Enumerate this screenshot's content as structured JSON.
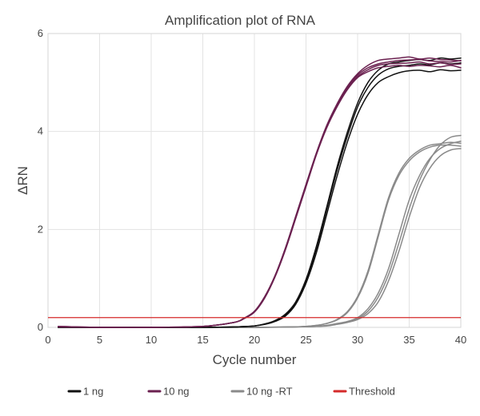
{
  "chart_data": {
    "type": "line",
    "title": "Amplification plot of RNA",
    "xlabel": "Cycle number",
    "ylabel": "ΔRN",
    "xlim": [
      0,
      40
    ],
    "ylim": [
      0,
      6
    ],
    "xticks": [
      0,
      5,
      10,
      15,
      20,
      25,
      30,
      35,
      40
    ],
    "yticks": [
      0,
      2,
      4,
      6
    ],
    "grid": true,
    "legend_position": "bottom",
    "threshold": 0.2,
    "colors": {
      "1 ng": "#111111",
      "10 ng": "#6b2150",
      "10 ng -RT": "#8a8a8a",
      "Threshold": "#d42a2a"
    },
    "series": [
      {
        "name": "10 ng",
        "x": [
          1,
          5,
          10,
          15,
          18,
          19,
          20,
          21,
          22,
          23,
          24,
          25,
          26,
          27,
          28,
          29,
          30,
          31,
          32,
          33,
          34,
          35,
          36,
          37,
          38,
          39,
          40
        ],
        "values": [
          0.02,
          0,
          0,
          0.02,
          0.1,
          0.18,
          0.32,
          0.62,
          1.05,
          1.6,
          2.25,
          2.9,
          3.55,
          4.1,
          4.55,
          4.9,
          5.15,
          5.3,
          5.38,
          5.42,
          5.45,
          5.46,
          5.47,
          5.44,
          5.43,
          5.42,
          5.45
        ]
      },
      {
        "name": "10 ng",
        "x": [
          1,
          5,
          10,
          15,
          18,
          19,
          20,
          21,
          22,
          23,
          24,
          25,
          26,
          27,
          28,
          29,
          30,
          31,
          32,
          33,
          34,
          35,
          36,
          37,
          38,
          39,
          40
        ],
        "values": [
          0.01,
          0,
          0,
          0.02,
          0.1,
          0.19,
          0.33,
          0.63,
          1.06,
          1.62,
          2.27,
          2.92,
          3.56,
          4.12,
          4.56,
          4.92,
          5.18,
          5.35,
          5.45,
          5.48,
          5.5,
          5.52,
          5.48,
          5.5,
          5.47,
          5.46,
          5.44
        ]
      },
      {
        "name": "10 ng",
        "x": [
          1,
          5,
          10,
          15,
          18,
          19,
          20,
          21,
          22,
          23,
          24,
          25,
          26,
          27,
          28,
          29,
          30,
          31,
          32,
          33,
          34,
          35,
          36,
          37,
          38,
          39,
          40
        ],
        "values": [
          0.02,
          0,
          0,
          0.02,
          0.1,
          0.18,
          0.31,
          0.6,
          1.03,
          1.58,
          2.22,
          2.87,
          3.52,
          4.07,
          4.5,
          4.85,
          5.1,
          5.22,
          5.3,
          5.33,
          5.35,
          5.33,
          5.35,
          5.34,
          5.32,
          5.35,
          5.3
        ]
      },
      {
        "name": "10 ng",
        "x": [
          1,
          5,
          10,
          15,
          18,
          19,
          20,
          21,
          22,
          23,
          24,
          25,
          26,
          27,
          28,
          29,
          30,
          31,
          32,
          33,
          34,
          35,
          36,
          37,
          38,
          39,
          40
        ],
        "values": [
          0.01,
          0,
          0,
          0.02,
          0.1,
          0.18,
          0.32,
          0.61,
          1.04,
          1.59,
          2.24,
          2.89,
          3.54,
          4.09,
          4.53,
          4.88,
          5.12,
          5.26,
          5.35,
          5.38,
          5.39,
          5.4,
          5.42,
          5.38,
          5.4,
          5.37,
          5.38
        ]
      },
      {
        "name": "1 ng",
        "x": [
          1,
          5,
          10,
          15,
          18,
          20,
          21,
          22,
          23,
          24,
          25,
          26,
          27,
          28,
          29,
          30,
          31,
          32,
          33,
          34,
          35,
          36,
          37,
          38,
          39,
          40
        ],
        "values": [
          0,
          0,
          0,
          0,
          0.01,
          0.03,
          0.07,
          0.13,
          0.25,
          0.5,
          0.95,
          1.6,
          2.4,
          3.2,
          3.9,
          4.5,
          4.9,
          5.15,
          5.28,
          5.33,
          5.35,
          5.38,
          5.36,
          5.4,
          5.38,
          5.4
        ]
      },
      {
        "name": "1 ng",
        "x": [
          1,
          5,
          10,
          15,
          18,
          20,
          21,
          22,
          23,
          24,
          25,
          26,
          27,
          28,
          29,
          30,
          31,
          32,
          33,
          34,
          35,
          36,
          37,
          38,
          39,
          40
        ],
        "values": [
          0,
          0,
          0,
          0,
          0.01,
          0.03,
          0.07,
          0.14,
          0.27,
          0.52,
          0.98,
          1.65,
          2.45,
          3.27,
          3.98,
          4.58,
          5.0,
          5.25,
          5.38,
          5.42,
          5.45,
          5.47,
          5.45,
          5.5,
          5.48,
          5.5
        ]
      },
      {
        "name": "1 ng",
        "x": [
          1,
          5,
          10,
          15,
          18,
          20,
          21,
          22,
          23,
          24,
          25,
          26,
          27,
          28,
          29,
          30,
          31,
          32,
          33,
          34,
          35,
          36,
          37,
          38,
          39,
          40
        ],
        "values": [
          0,
          0,
          0,
          0,
          0.01,
          0.03,
          0.06,
          0.12,
          0.23,
          0.47,
          0.9,
          1.52,
          2.3,
          3.08,
          3.78,
          4.35,
          4.75,
          5.0,
          5.12,
          5.2,
          5.24,
          5.25,
          5.22,
          5.26,
          5.24,
          5.25
        ]
      },
      {
        "name": "10 ng -RT",
        "x": [
          1,
          5,
          10,
          15,
          20,
          24,
          26,
          27,
          28,
          29,
          30,
          31,
          32,
          33,
          34,
          35,
          36,
          37,
          38,
          39,
          40
        ],
        "values": [
          0,
          0,
          0,
          0,
          0,
          0.01,
          0.04,
          0.08,
          0.15,
          0.3,
          0.6,
          1.1,
          1.85,
          2.6,
          3.1,
          3.4,
          3.58,
          3.68,
          3.72,
          3.72,
          3.7
        ]
      },
      {
        "name": "10 ng -RT",
        "x": [
          1,
          5,
          10,
          15,
          20,
          24,
          26,
          27,
          28,
          29,
          30,
          31,
          32,
          33,
          34,
          35,
          36,
          37,
          38,
          39,
          40
        ],
        "values": [
          0,
          0,
          0,
          0,
          0,
          0.01,
          0.04,
          0.08,
          0.16,
          0.32,
          0.63,
          1.15,
          1.9,
          2.65,
          3.15,
          3.45,
          3.62,
          3.72,
          3.75,
          3.78,
          3.76
        ]
      },
      {
        "name": "10 ng -RT",
        "x": [
          1,
          5,
          10,
          15,
          20,
          24,
          26,
          27,
          28,
          29,
          30,
          31,
          32,
          33,
          34,
          35,
          36,
          37,
          38,
          39,
          40
        ],
        "values": [
          0,
          0,
          0,
          0,
          0,
          0.01,
          0.02,
          0.04,
          0.08,
          0.12,
          0.2,
          0.38,
          0.7,
          1.2,
          1.9,
          2.6,
          3.1,
          3.45,
          3.65,
          3.75,
          3.8
        ]
      },
      {
        "name": "10 ng -RT",
        "x": [
          1,
          5,
          10,
          15,
          20,
          24,
          26,
          27,
          28,
          29,
          30,
          31,
          32,
          33,
          34,
          35,
          36,
          37,
          38,
          39,
          40
        ],
        "values": [
          0,
          0,
          0,
          0,
          0,
          0.01,
          0.02,
          0.04,
          0.07,
          0.11,
          0.18,
          0.33,
          0.62,
          1.08,
          1.72,
          2.42,
          3.0,
          3.42,
          3.72,
          3.88,
          3.92
        ]
      },
      {
        "name": "10 ng -RT",
        "x": [
          1,
          5,
          10,
          15,
          20,
          24,
          26,
          27,
          28,
          29,
          30,
          31,
          32,
          33,
          34,
          35,
          36,
          37,
          38,
          39,
          40
        ],
        "values": [
          0,
          0,
          0,
          0,
          0,
          0.01,
          0.02,
          0.03,
          0.06,
          0.1,
          0.16,
          0.28,
          0.52,
          0.95,
          1.55,
          2.25,
          2.85,
          3.25,
          3.5,
          3.62,
          3.65
        ]
      }
    ],
    "legend": [
      {
        "label": "1 ng",
        "color": "#111111"
      },
      {
        "label": "10 ng",
        "color": "#6b2150"
      },
      {
        "label": "10 ng -RT",
        "color": "#8a8a8a"
      },
      {
        "label": "Threshold",
        "color": "#d42a2a"
      }
    ]
  }
}
